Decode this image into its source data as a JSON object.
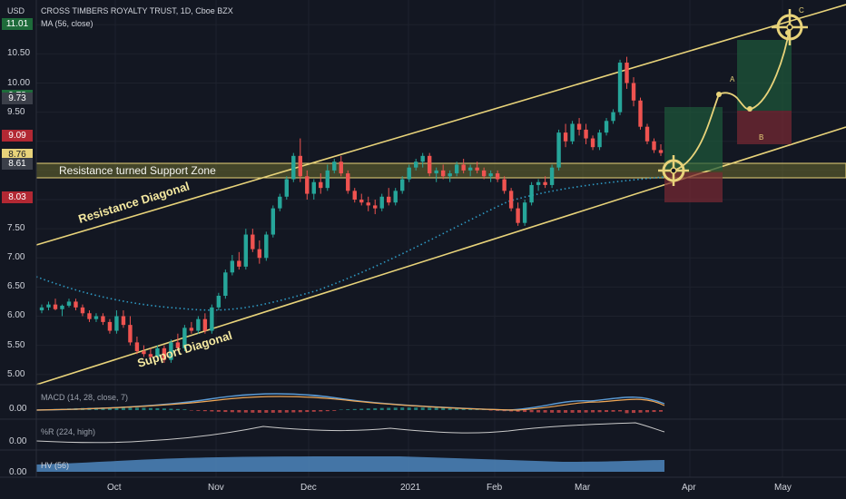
{
  "header": {
    "currency": "USD",
    "symbol_title": "CROSS TIMBERS ROYALTY TRUST, 1D, Cboe BZX",
    "ma_label": "MA (56, close)",
    "macd_label": "MACD (14, 28, close, 7)",
    "wr_label": "%R (224, high)",
    "hv_label": "HV (56)"
  },
  "colors": {
    "background": "#131722",
    "up": "#26a69a",
    "down": "#ef5350",
    "trendline": "#e8d37a",
    "zone_fill": "#6b6b30",
    "ma": "#2e9ac4",
    "macd": "#5b9bd5",
    "signal": "#f0a857",
    "hv_fill": "#4a7fb5"
  },
  "axis": {
    "y_ticks": [
      "10.50",
      "10.00",
      "9.50",
      "7.50",
      "7.00",
      "6.50",
      "6.00",
      "5.50",
      "5.00"
    ],
    "x_ticks": [
      "Oct",
      "Nov",
      "Dec",
      "2021",
      "Feb",
      "Mar",
      "Apr",
      "May"
    ],
    "macd_tick": "0.00",
    "wr_tick": "0.00",
    "hv_tick": "0.00"
  },
  "price_badges": [
    {
      "label": "11.01",
      "color": "#1e6b3a"
    },
    {
      "label": "9.78",
      "color": "#1e6b3a"
    },
    {
      "label": "9.73",
      "color": "#3b3f49"
    },
    {
      "label": "9.09",
      "color": "#b22833"
    },
    {
      "label": "8.76",
      "color": "#e8d37a"
    },
    {
      "label": "8.61",
      "color": "#3b3f49"
    },
    {
      "label": "8.03",
      "color": "#b22833"
    }
  ],
  "annotations": {
    "zone_label": "Resistance turned Support Zone",
    "resistance_label": "Resistance Diagonal",
    "support_label": "Support Diagonal"
  },
  "chart_data": {
    "type": "candlestick",
    "title": "CROSS TIMBERS ROYALTY TRUST, 1D, Cboe BZX",
    "y_axis": {
      "min": 4.7,
      "max": 11.3,
      "ticks": [
        5.0,
        5.5,
        6.0,
        6.5,
        7.0,
        7.5,
        9.5,
        10.0,
        10.5
      ]
    },
    "ohlc": [
      [
        6.1,
        6.2,
        6.05,
        6.15
      ],
      [
        6.15,
        6.25,
        6.1,
        6.2
      ],
      [
        6.2,
        6.3,
        6.1,
        6.12
      ],
      [
        6.12,
        6.2,
        6.0,
        6.18
      ],
      [
        6.18,
        6.3,
        6.15,
        6.25
      ],
      [
        6.25,
        6.3,
        6.1,
        6.15
      ],
      [
        6.15,
        6.2,
        6.0,
        6.05
      ],
      [
        6.05,
        6.1,
        5.9,
        5.95
      ],
      [
        5.95,
        6.05,
        5.9,
        6.0
      ],
      [
        6.0,
        6.05,
        5.85,
        5.9
      ],
      [
        5.9,
        5.95,
        5.7,
        5.75
      ],
      [
        5.75,
        6.1,
        5.7,
        6.0
      ],
      [
        6.0,
        6.1,
        5.8,
        5.85
      ],
      [
        5.85,
        6.0,
        5.5,
        5.55
      ],
      [
        5.55,
        5.65,
        5.35,
        5.4
      ],
      [
        5.4,
        5.5,
        5.3,
        5.35
      ],
      [
        5.35,
        5.45,
        5.25,
        5.3
      ],
      [
        5.3,
        5.5,
        5.25,
        5.45
      ],
      [
        5.45,
        5.5,
        5.2,
        5.25
      ],
      [
        5.25,
        5.6,
        5.2,
        5.55
      ],
      [
        5.55,
        5.7,
        5.4,
        5.45
      ],
      [
        5.45,
        5.85,
        5.4,
        5.8
      ],
      [
        5.8,
        5.9,
        5.7,
        5.75
      ],
      [
        5.75,
        6.0,
        5.7,
        5.95
      ],
      [
        5.95,
        6.05,
        5.7,
        5.75
      ],
      [
        5.75,
        6.2,
        5.7,
        6.15
      ],
      [
        6.15,
        6.4,
        6.1,
        6.35
      ],
      [
        6.35,
        6.8,
        6.3,
        6.75
      ],
      [
        6.75,
        7.05,
        6.7,
        6.95
      ],
      [
        6.95,
        7.1,
        6.8,
        6.85
      ],
      [
        6.85,
        7.5,
        6.8,
        7.4
      ],
      [
        7.4,
        7.5,
        7.1,
        7.15
      ],
      [
        7.15,
        7.3,
        6.9,
        7.0
      ],
      [
        7.0,
        7.45,
        6.95,
        7.4
      ],
      [
        7.4,
        7.9,
        7.35,
        7.85
      ],
      [
        7.85,
        8.1,
        7.8,
        8.05
      ],
      [
        8.05,
        8.4,
        8.0,
        8.35
      ],
      [
        8.35,
        8.8,
        8.3,
        8.75
      ],
      [
        8.75,
        9.05,
        8.3,
        8.4
      ],
      [
        8.4,
        8.5,
        8.0,
        8.1
      ],
      [
        8.1,
        8.35,
        8.0,
        8.3
      ],
      [
        8.3,
        8.45,
        8.1,
        8.2
      ],
      [
        8.2,
        8.6,
        8.15,
        8.5
      ],
      [
        8.5,
        8.7,
        8.45,
        8.65
      ],
      [
        8.65,
        8.75,
        8.4,
        8.45
      ],
      [
        8.45,
        8.5,
        8.1,
        8.15
      ],
      [
        8.15,
        8.2,
        7.95,
        8.0
      ],
      [
        8.0,
        8.1,
        7.9,
        7.95
      ],
      [
        7.95,
        8.05,
        7.8,
        7.9
      ],
      [
        7.9,
        8.0,
        7.75,
        7.85
      ],
      [
        7.85,
        8.1,
        7.8,
        8.05
      ],
      [
        8.05,
        8.2,
        7.9,
        7.95
      ],
      [
        7.95,
        8.2,
        7.9,
        8.15
      ],
      [
        8.15,
        8.4,
        8.1,
        8.35
      ],
      [
        8.35,
        8.6,
        8.3,
        8.55
      ],
      [
        8.55,
        8.7,
        8.5,
        8.65
      ],
      [
        8.65,
        8.8,
        8.55,
        8.75
      ],
      [
        8.75,
        8.8,
        8.4,
        8.45
      ],
      [
        8.45,
        8.55,
        8.3,
        8.5
      ],
      [
        8.5,
        8.6,
        8.35,
        8.4
      ],
      [
        8.4,
        8.5,
        8.3,
        8.45
      ],
      [
        8.45,
        8.65,
        8.4,
        8.6
      ],
      [
        8.6,
        8.7,
        8.45,
        8.5
      ],
      [
        8.5,
        8.6,
        8.4,
        8.55
      ],
      [
        8.55,
        8.65,
        8.45,
        8.5
      ],
      [
        8.5,
        8.55,
        8.35,
        8.4
      ],
      [
        8.4,
        8.5,
        8.3,
        8.45
      ],
      [
        8.45,
        8.5,
        8.3,
        8.35
      ],
      [
        8.35,
        8.4,
        8.1,
        8.15
      ],
      [
        8.15,
        8.2,
        7.8,
        7.85
      ],
      [
        7.85,
        7.95,
        7.55,
        7.6
      ],
      [
        7.6,
        8.0,
        7.55,
        7.95
      ],
      [
        7.95,
        8.3,
        7.9,
        8.25
      ],
      [
        8.25,
        8.35,
        8.15,
        8.3
      ],
      [
        8.3,
        8.4,
        8.2,
        8.25
      ],
      [
        8.25,
        8.6,
        8.2,
        8.55
      ],
      [
        8.55,
        9.2,
        8.5,
        9.15
      ],
      [
        9.15,
        9.3,
        8.9,
        9.0
      ],
      [
        9.0,
        9.35,
        8.95,
        9.3
      ],
      [
        9.3,
        9.4,
        9.1,
        9.2
      ],
      [
        9.2,
        9.3,
        8.95,
        9.05
      ],
      [
        9.05,
        9.1,
        8.85,
        8.9
      ],
      [
        8.9,
        9.2,
        8.85,
        9.15
      ],
      [
        9.15,
        9.4,
        9.1,
        9.35
      ],
      [
        9.35,
        9.55,
        9.3,
        9.5
      ],
      [
        9.5,
        10.4,
        9.45,
        10.35
      ],
      [
        10.35,
        10.45,
        9.9,
        10.0
      ],
      [
        10.0,
        10.1,
        9.6,
        9.7
      ],
      [
        9.7,
        9.75,
        9.2,
        9.25
      ],
      [
        9.25,
        9.3,
        8.95,
        9.0
      ],
      [
        9.0,
        9.05,
        8.8,
        8.85
      ],
      [
        8.85,
        8.95,
        8.75,
        8.8
      ]
    ],
    "ma_series_name": "MA (56, close)",
    "trendlines": [
      "Resistance Diagonal",
      "Support Diagonal"
    ],
    "zone": {
      "low": 8.61,
      "high": 8.76
    },
    "projection_levels": {
      "target_1": 9.78,
      "pullback": 9.09,
      "target_2": 11.01,
      "stop": 8.03
    }
  }
}
